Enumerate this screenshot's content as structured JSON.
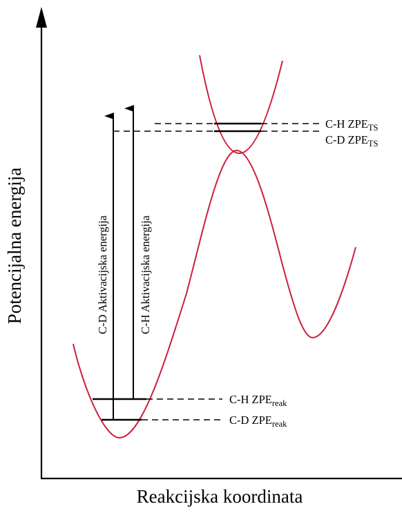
{
  "axes": {
    "y_title": "Potencijalna energija",
    "x_title": "Reakcijska koordinata"
  },
  "levels": {
    "ch_ts": {
      "prefix": "C-H ZPE",
      "subscript": "TS"
    },
    "cd_ts": {
      "prefix": "C-D ZPE",
      "subscript": "TS"
    },
    "ch_reak": {
      "prefix": "C-H ZPE",
      "subscript": "reak"
    },
    "cd_reak": {
      "prefix": "C-D ZPE",
      "subscript": "reak"
    }
  },
  "arrows": {
    "cd_activation": "C-D Aktivacijska energija",
    "ch_activation": "C-H Aktivacijska energija"
  },
  "colors": {
    "curve": "#cc1f3a",
    "lines": "#000000"
  }
}
